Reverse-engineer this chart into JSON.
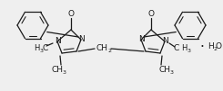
{
  "bg_color": "#efefef",
  "line_color": "#1a1a1a",
  "text_color": "#1a1a1a",
  "lw": 0.9,
  "figsize": [
    2.45,
    1.01
  ],
  "dpi": 100,
  "xlim": [
    0,
    245
  ],
  "ylim": [
    0,
    101
  ]
}
